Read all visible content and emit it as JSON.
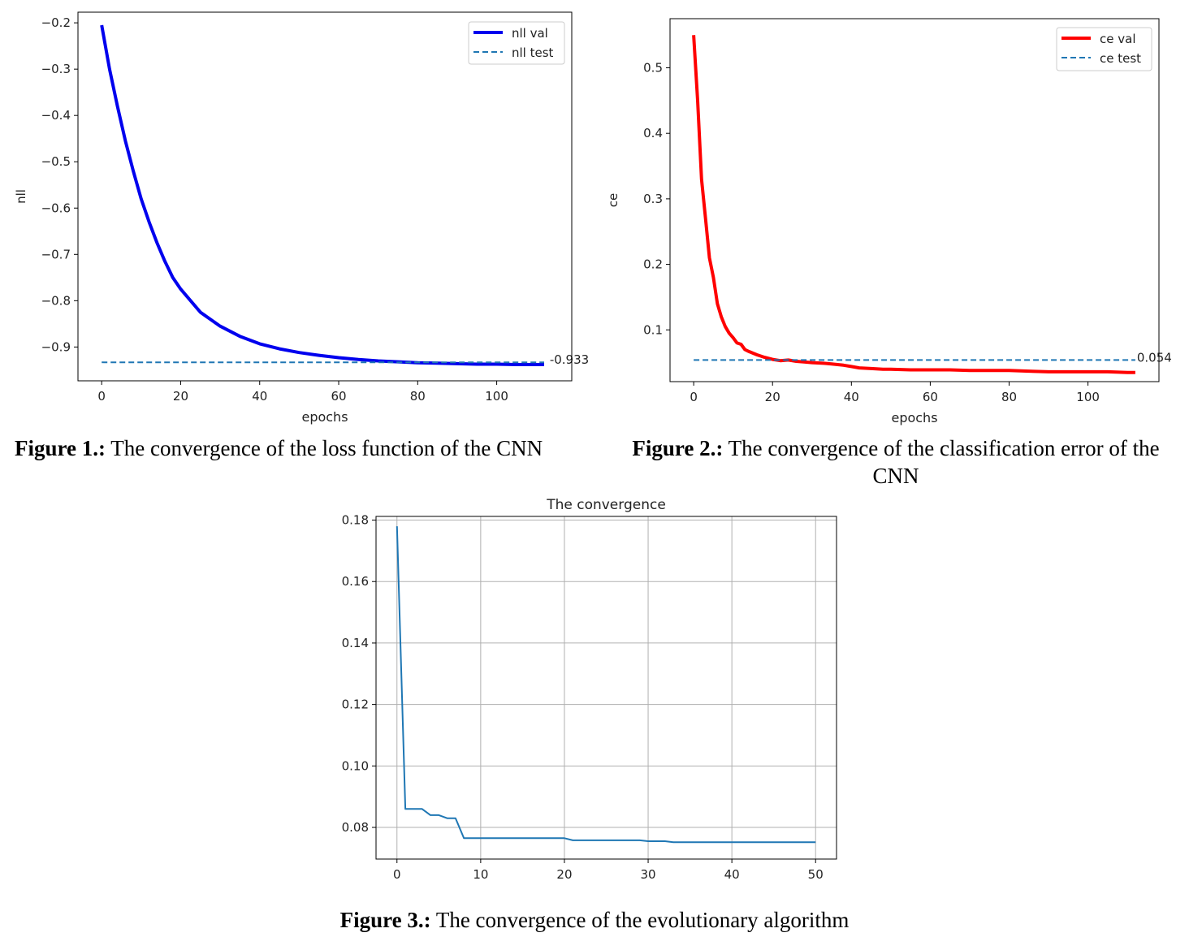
{
  "captions": {
    "fig1_label": "Figure 1.:",
    "fig1_text": " The convergence of the loss function of the CNN",
    "fig2_label": "Figure 2.:",
    "fig2_text": " The convergence of the classification error of the CNN",
    "fig3_label": "Figure 3.:",
    "fig3_text": " The convergence of the evolutionary algorithm"
  },
  "chart_data": [
    {
      "type": "line",
      "title": "",
      "xlabel": "epochs",
      "ylabel": "nll",
      "xlim": [
        -6,
        119
      ],
      "ylim": [
        -0.973,
        -0.177
      ],
      "xticks": [
        0,
        20,
        40,
        60,
        80,
        100
      ],
      "yticks": [
        -0.2,
        -0.3,
        -0.4,
        -0.5,
        -0.6,
        -0.7,
        -0.8,
        -0.9
      ],
      "grid": false,
      "legend": "top-right",
      "series": [
        {
          "name": "nll val",
          "color": "#0000ee",
          "style": "solid",
          "x": [
            0,
            2,
            4,
            6,
            8,
            10,
            12,
            14,
            16,
            18,
            20,
            25,
            30,
            35,
            40,
            45,
            50,
            55,
            60,
            65,
            70,
            75,
            80,
            85,
            90,
            95,
            100,
            105,
            110,
            112
          ],
          "y": [
            -0.205,
            -0.3,
            -0.38,
            -0.455,
            -0.52,
            -0.58,
            -0.63,
            -0.675,
            -0.715,
            -0.75,
            -0.775,
            -0.825,
            -0.855,
            -0.877,
            -0.893,
            -0.904,
            -0.912,
            -0.918,
            -0.923,
            -0.927,
            -0.93,
            -0.932,
            -0.934,
            -0.935,
            -0.936,
            -0.937,
            -0.937,
            -0.938,
            -0.938,
            -0.938
          ]
        },
        {
          "name": "nll test",
          "color": "#1f77b4",
          "style": "dashed",
          "x": [
            0,
            112
          ],
          "y": [
            -0.933,
            -0.933
          ]
        }
      ],
      "annotations": [
        {
          "text": "-0.933",
          "x": 113,
          "y": -0.933
        }
      ]
    },
    {
      "type": "line",
      "title": "",
      "xlabel": "epochs",
      "ylabel": "ce",
      "xlim": [
        -6,
        118
      ],
      "ylim": [
        0.021,
        0.575
      ],
      "xticks": [
        0,
        20,
        40,
        60,
        80,
        100
      ],
      "yticks": [
        0.1,
        0.2,
        0.3,
        0.4,
        0.5
      ],
      "grid": false,
      "legend": "top-right",
      "series": [
        {
          "name": "ce val",
          "color": "#ff0000",
          "style": "solid",
          "x": [
            0,
            1,
            2,
            3,
            4,
            5,
            6,
            7,
            8,
            9,
            10,
            11,
            12,
            13,
            14,
            16,
            18,
            20,
            22,
            24,
            26,
            28,
            30,
            33,
            35,
            38,
            40,
            42,
            45,
            48,
            50,
            55,
            60,
            65,
            70,
            75,
            80,
            85,
            90,
            95,
            100,
            105,
            110,
            112
          ],
          "y": [
            0.55,
            0.45,
            0.33,
            0.27,
            0.21,
            0.18,
            0.14,
            0.12,
            0.105,
            0.095,
            0.088,
            0.08,
            0.078,
            0.07,
            0.067,
            0.062,
            0.058,
            0.055,
            0.053,
            0.054,
            0.052,
            0.051,
            0.05,
            0.049,
            0.048,
            0.046,
            0.044,
            0.042,
            0.041,
            0.04,
            0.04,
            0.039,
            0.039,
            0.039,
            0.038,
            0.038,
            0.038,
            0.037,
            0.036,
            0.036,
            0.036,
            0.036,
            0.035,
            0.035
          ]
        },
        {
          "name": "ce test",
          "color": "#1f77b4",
          "style": "dashed",
          "x": [
            0,
            112
          ],
          "y": [
            0.054,
            0.054
          ]
        }
      ],
      "annotations": [
        {
          "text": "0.054",
          "x": 112,
          "y": 0.054
        }
      ]
    },
    {
      "type": "line",
      "title": "The convergence",
      "xlabel": "",
      "ylabel": "",
      "xlim": [
        -2.5,
        52.5
      ],
      "ylim": [
        0.0697,
        0.1812
      ],
      "xticks": [
        0,
        10,
        20,
        30,
        40,
        50
      ],
      "yticks": [
        0.18,
        0.16,
        0.14,
        0.12,
        0.1,
        0.08
      ],
      "grid": true,
      "series": [
        {
          "color": "#1f77b4",
          "style": "solid",
          "x": [
            0,
            1,
            2,
            3,
            4,
            5,
            6,
            7,
            8,
            9,
            10,
            11,
            12,
            13,
            14,
            15,
            16,
            17,
            18,
            19,
            20,
            21,
            22,
            23,
            24,
            25,
            26,
            27,
            28,
            29,
            30,
            31,
            32,
            33,
            34,
            35,
            36,
            37,
            38,
            39,
            40,
            41,
            42,
            43,
            44,
            45,
            46,
            47,
            48,
            49,
            50
          ],
          "y": [
            0.178,
            0.086,
            0.086,
            0.086,
            0.084,
            0.084,
            0.083,
            0.083,
            0.0765,
            0.0765,
            0.0765,
            0.0765,
            0.0765,
            0.0765,
            0.0765,
            0.0765,
            0.0765,
            0.0765,
            0.0765,
            0.0765,
            0.0765,
            0.0758,
            0.0758,
            0.0758,
            0.0758,
            0.0758,
            0.0758,
            0.0758,
            0.0758,
            0.0758,
            0.0755,
            0.0755,
            0.0755,
            0.0752,
            0.0752,
            0.0752,
            0.0752,
            0.0752,
            0.0752,
            0.0752,
            0.0752,
            0.0752,
            0.0752,
            0.0752,
            0.0752,
            0.0752,
            0.0752,
            0.0752,
            0.0752,
            0.0752,
            0.0752
          ]
        }
      ]
    }
  ]
}
